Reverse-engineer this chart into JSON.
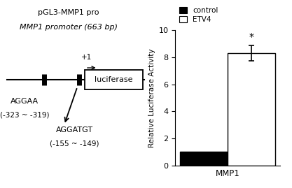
{
  "title_left": "pGL3-MMP1 pro",
  "subtitle_left": "MMP1 promoter (663 bp)",
  "annotation1_label": "AGGAA",
  "annotation1_pos": "(-323 ~ -319)",
  "annotation2_label": "AGGATGT",
  "annotation2_pos": "(-155 ~ -149)",
  "luciferase_label": "luciferase",
  "plus1_label": "+1",
  "bar_categories": [
    "MMP1"
  ],
  "control_values": [
    1.0
  ],
  "etv4_values": [
    8.3
  ],
  "etv4_error": [
    0.55
  ],
  "ylabel": "Relative Luciferase Activity",
  "ylim": [
    0,
    10
  ],
  "yticks": [
    0,
    2,
    4,
    6,
    8,
    10
  ],
  "legend_labels": [
    "control",
    "ETV4"
  ],
  "bar_width": 0.32,
  "control_color": "#000000",
  "etv4_color": "#ffffff",
  "asterisk": "*",
  "figure_width": 4.17,
  "figure_height": 2.69
}
